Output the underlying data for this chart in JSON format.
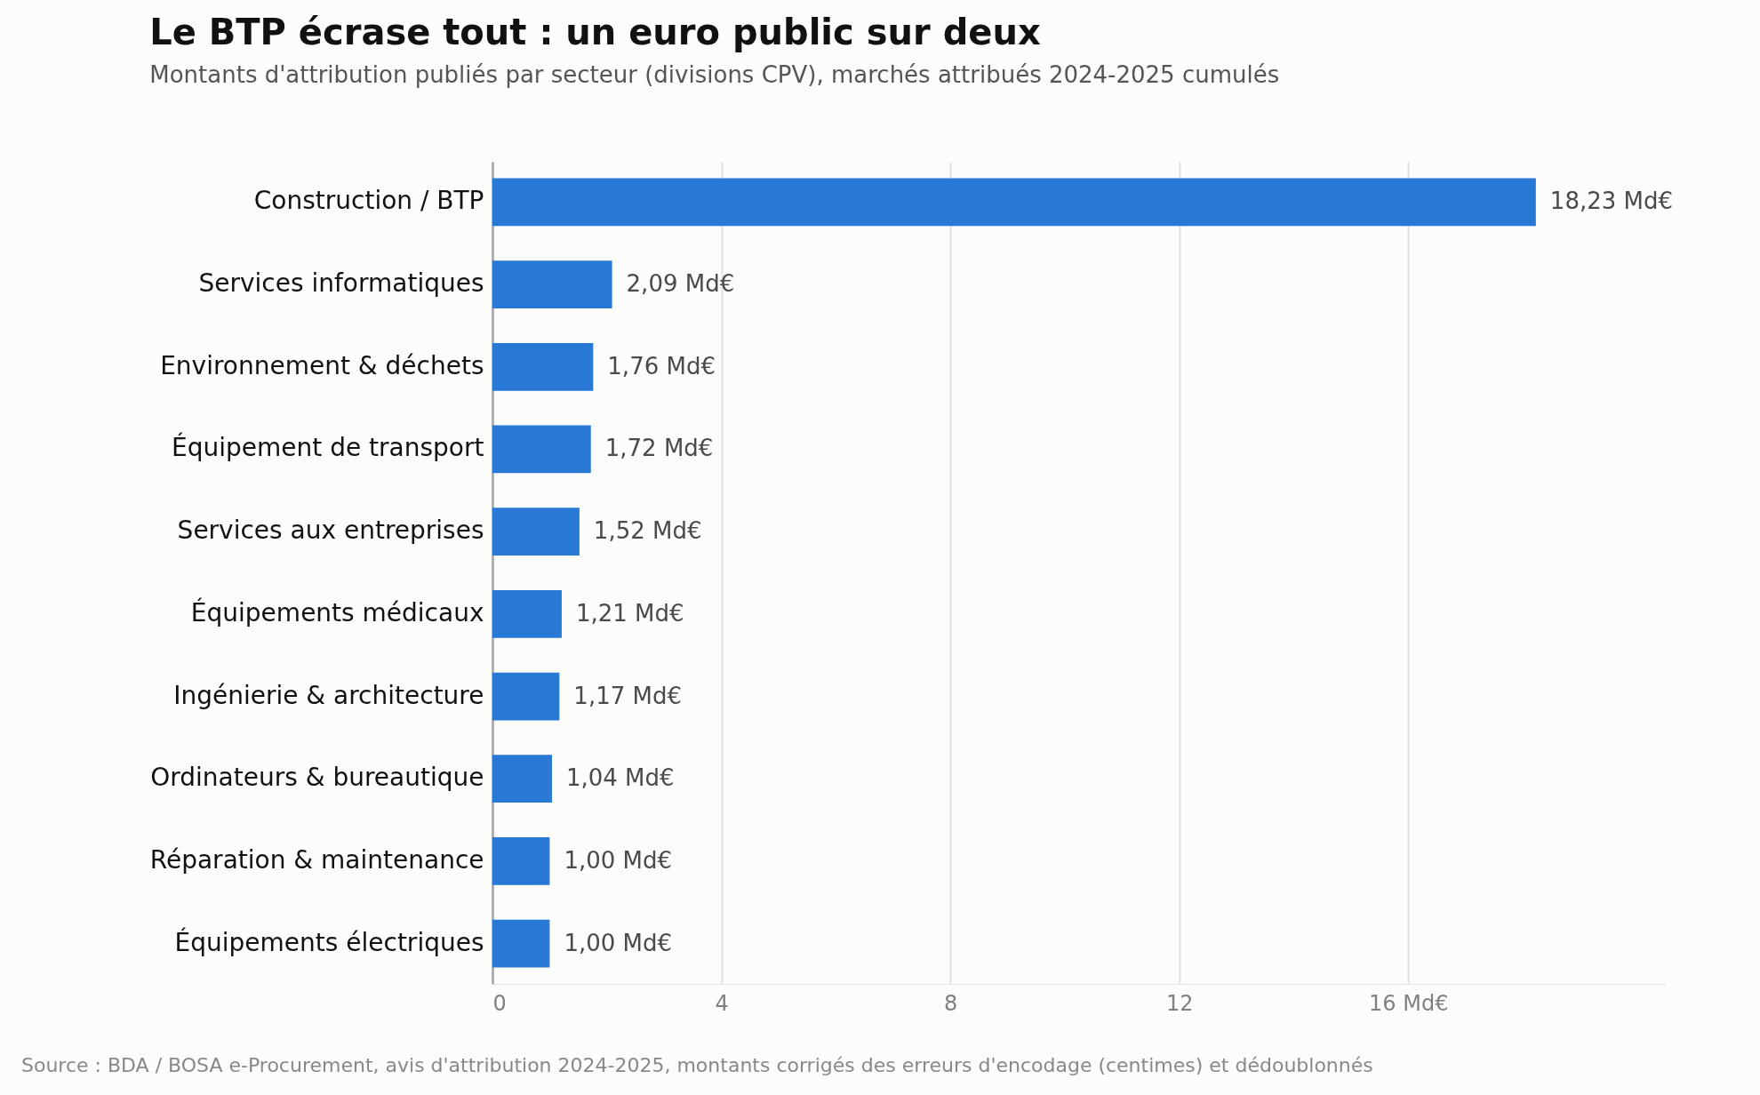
{
  "chart_data": {
    "type": "bar",
    "orientation": "horizontal",
    "title": "Le BTP écrase tout : un euro public sur deux",
    "subtitle": "Montants d'attribution publiés par secteur (divisions CPV), marchés attribués 2024-2025 cumulés",
    "categories": [
      "Construction / BTP",
      "Services informatiques",
      "Environnement & déchets",
      "Équipement de transport",
      "Services aux entreprises",
      "Équipements médicaux",
      "Ingénierie & architecture",
      "Ordinateurs & bureautique",
      "Réparation & maintenance",
      "Équipements électriques"
    ],
    "values": [
      18.23,
      2.09,
      1.76,
      1.72,
      1.52,
      1.21,
      1.17,
      1.04,
      1.0,
      1.0
    ],
    "value_labels": [
      "18,23 Md€",
      "2,09 Md€",
      "1,76 Md€",
      "1,72 Md€",
      "1,52 Md€",
      "1,21 Md€",
      "1,17 Md€",
      "1,04 Md€",
      "1,00 Md€",
      "1,00 Md€"
    ],
    "color": "#2878d6",
    "xlim": [
      0,
      20.5
    ],
    "xticks": [
      0,
      4,
      8,
      12,
      {
        "value": 16,
        "label": "16 Md€"
      }
    ],
    "grid": "x",
    "annotations": [
      "Source : BDA / BOSA e-Procurement, avis d'attribution 2024-2025, montants corrigés des erreurs d'encodage (centimes) et dédoublonnés"
    ]
  }
}
